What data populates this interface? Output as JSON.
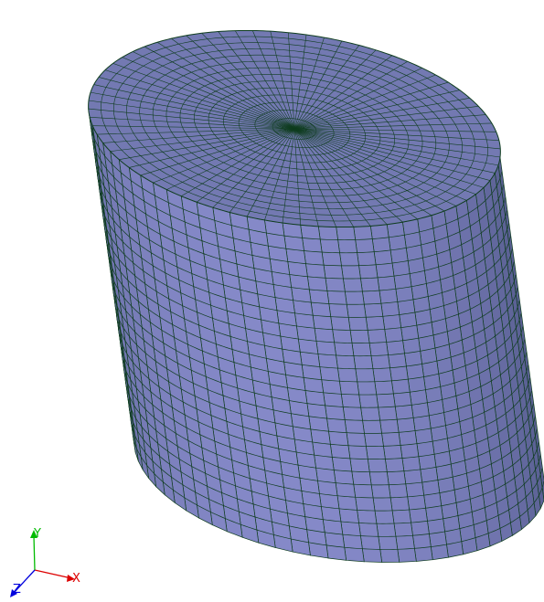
{
  "viewport": {
    "background": "#ffffff",
    "mesh_color": "#0f3d1f",
    "side_color_light": "#8589c8",
    "side_color_dark": "#3d4470",
    "top_color": "#7379b2"
  },
  "mesh": {
    "circumferential_divisions": 72,
    "top_radial_rings": 14,
    "side_axial_divisions": 26
  },
  "axes": {
    "x": {
      "label": "X",
      "color": "#dd0000"
    },
    "y": {
      "label": "Y",
      "color": "#00bb00"
    },
    "z": {
      "label": "Z",
      "color": "#0000dd"
    }
  }
}
